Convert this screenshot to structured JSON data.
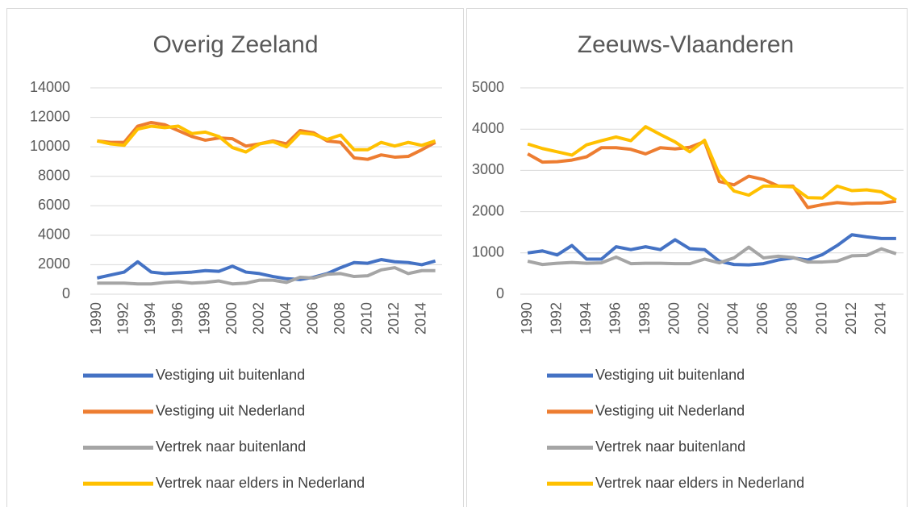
{
  "chart_data": [
    {
      "type": "line",
      "title": "Overig Zeeland",
      "x": [
        1990,
        1991,
        1992,
        1993,
        1994,
        1995,
        1996,
        1997,
        1998,
        1999,
        2000,
        2001,
        2002,
        2003,
        2004,
        2005,
        2006,
        2007,
        2008,
        2009,
        2010,
        2011,
        2012,
        2013,
        2014,
        2015
      ],
      "xlim": [
        1989.5,
        2015.5
      ],
      "xticks": [
        1990,
        1992,
        1994,
        1996,
        1998,
        2000,
        2002,
        2004,
        2006,
        2008,
        2010,
        2012,
        2014
      ],
      "ylim": [
        0,
        14000
      ],
      "yticks": [
        0,
        2000,
        4000,
        6000,
        8000,
        10000,
        12000,
        14000
      ],
      "grid": true,
      "legend": "bottom",
      "series": [
        {
          "name": "Vestiging uit buitenland",
          "color": "#4472c4",
          "values": [
            1100,
            1300,
            1500,
            2200,
            1500,
            1400,
            1450,
            1500,
            1600,
            1550,
            1900,
            1500,
            1400,
            1200,
            1050,
            1000,
            1150,
            1400,
            1800,
            2150,
            2100,
            2350,
            2200,
            2150,
            2000,
            2250
          ]
        },
        {
          "name": "Vestiging uit Nederland",
          "color": "#ed7d31",
          "values": [
            10400,
            10300,
            10300,
            11400,
            11650,
            11500,
            11100,
            10700,
            10450,
            10600,
            10550,
            10050,
            10200,
            10400,
            10200,
            11100,
            10950,
            10400,
            10300,
            9250,
            9150,
            9450,
            9300,
            9350,
            9800,
            10300
          ]
        },
        {
          "name": "Vertrek naar buitenland",
          "color": "#a5a5a5",
          "values": [
            750,
            750,
            750,
            700,
            700,
            800,
            850,
            750,
            800,
            900,
            700,
            750,
            950,
            950,
            800,
            1150,
            1100,
            1350,
            1400,
            1200,
            1250,
            1650,
            1800,
            1400,
            1600,
            1600
          ]
        },
        {
          "name": "Vertrek naar elders in Nederland",
          "color": "#ffc000",
          "values": [
            10400,
            10200,
            10100,
            11200,
            11400,
            11300,
            11400,
            10900,
            11000,
            10700,
            9950,
            9650,
            10200,
            10350,
            10000,
            10950,
            10850,
            10500,
            10800,
            9800,
            9800,
            10300,
            10050,
            10300,
            10100,
            10400
          ]
        }
      ]
    },
    {
      "type": "line",
      "title": "Zeeuws-Vlaanderen",
      "x": [
        1990,
        1991,
        1992,
        1993,
        1994,
        1995,
        1996,
        1997,
        1998,
        1999,
        2000,
        2001,
        2002,
        2003,
        2004,
        2005,
        2006,
        2007,
        2008,
        2009,
        2010,
        2011,
        2012,
        2013,
        2014,
        2015
      ],
      "xlim": [
        1989.5,
        2015.5
      ],
      "xticks": [
        1990,
        1992,
        1994,
        1996,
        1998,
        2000,
        2002,
        2004,
        2006,
        2008,
        2010,
        2012,
        2014
      ],
      "ylim": [
        0,
        5000
      ],
      "yticks": [
        0,
        1000,
        2000,
        3000,
        4000,
        5000
      ],
      "grid": true,
      "legend": "bottom",
      "series": [
        {
          "name": "Vestiging uit buitenland",
          "color": "#4472c4",
          "values": [
            1000,
            1050,
            950,
            1180,
            850,
            850,
            1150,
            1080,
            1150,
            1080,
            1320,
            1100,
            1080,
            800,
            720,
            710,
            740,
            830,
            880,
            830,
            960,
            1180,
            1440,
            1390,
            1350,
            1350
          ]
        },
        {
          "name": "Vestiging uit Nederland",
          "color": "#ed7d31",
          "values": [
            3400,
            3200,
            3210,
            3250,
            3330,
            3550,
            3550,
            3510,
            3400,
            3550,
            3520,
            3560,
            3700,
            2730,
            2650,
            2860,
            2780,
            2620,
            2620,
            2100,
            2170,
            2220,
            2190,
            2210,
            2210,
            2250
          ]
        },
        {
          "name": "Vertrek naar buitenland",
          "color": "#a5a5a5",
          "values": [
            800,
            720,
            750,
            770,
            750,
            760,
            900,
            740,
            750,
            750,
            740,
            740,
            850,
            760,
            880,
            1140,
            880,
            920,
            890,
            780,
            780,
            800,
            930,
            940,
            1100,
            980
          ]
        },
        {
          "name": "Vertrek naar elders in Nederland",
          "color": "#ffc000",
          "values": [
            3640,
            3530,
            3450,
            3370,
            3620,
            3720,
            3810,
            3720,
            4060,
            3870,
            3690,
            3450,
            3730,
            2900,
            2500,
            2400,
            2620,
            2620,
            2600,
            2340,
            2330,
            2620,
            2510,
            2530,
            2480,
            2280
          ]
        }
      ]
    }
  ]
}
